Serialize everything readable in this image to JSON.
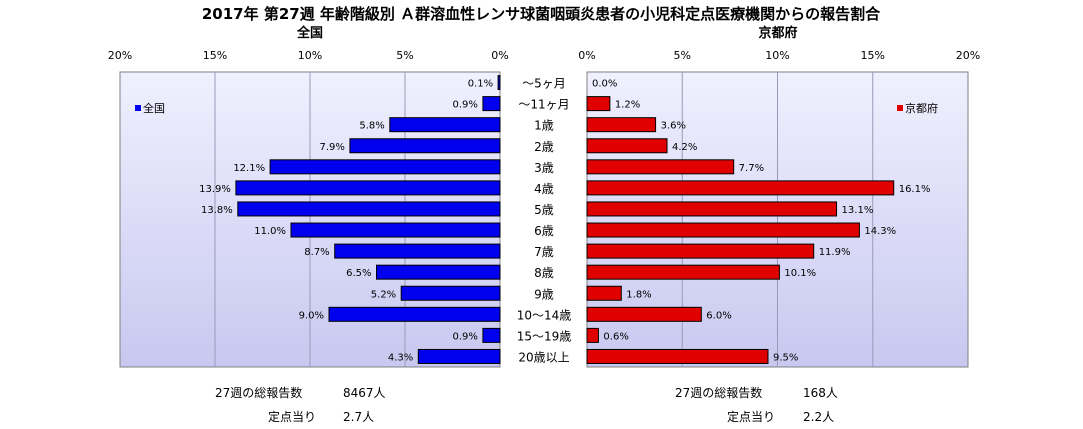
{
  "chart_data": {
    "type": "bar",
    "title": "2017年 第27週 年齢階級別 Ａ群溶血性レンサ球菌咽頭炎患者の小児科定点医療機関からの報告割合",
    "categories": [
      "～5ヶ月",
      "～11ヶ月",
      "1歳",
      "2歳",
      "3歳",
      "4歳",
      "5歳",
      "6歳",
      "7歳",
      "8歳",
      "9歳",
      "10～14歳",
      "15～19歳",
      "20歳以上"
    ],
    "xlim": [
      0,
      20
    ],
    "ticks": [
      "0%",
      "5%",
      "10%",
      "15%",
      "20%"
    ],
    "left_ticks": [
      "20%",
      "15%",
      "10%",
      "5%",
      "0%"
    ],
    "grid": "vertical",
    "legend_placement": "inside-top",
    "series": [
      {
        "name": "全国",
        "panel_title": "全国",
        "legend": "全国",
        "color": "#0000ee",
        "values": [
          0.1,
          0.9,
          5.8,
          7.9,
          12.1,
          13.9,
          13.8,
          11.0,
          8.7,
          6.5,
          5.2,
          9.0,
          0.9,
          4.3
        ],
        "labels": [
          "0.1%",
          "0.9%",
          "5.8%",
          "7.9%",
          "12.1%",
          "13.9%",
          "13.8%",
          "11.0%",
          "8.7%",
          "6.5%",
          "5.2%",
          "9.0%",
          "0.9%",
          "4.3%"
        ]
      },
      {
        "name": "京都府",
        "panel_title": "京都府",
        "legend": "京都府",
        "color": "#e00000",
        "values": [
          0.0,
          1.2,
          3.6,
          4.2,
          7.7,
          16.1,
          13.1,
          14.3,
          11.9,
          10.1,
          1.8,
          6.0,
          0.6,
          9.5
        ],
        "labels": [
          "0.0%",
          "1.2%",
          "3.6%",
          "4.2%",
          "7.7%",
          "16.1%",
          "13.1%",
          "14.3%",
          "11.9%",
          "10.1%",
          "1.8%",
          "6.0%",
          "0.6%",
          "9.5%"
        ]
      }
    ],
    "colors": {
      "plot_bg_top": "#f0f0ff",
      "plot_bg_bottom": "#c8c8f0"
    }
  },
  "footer": {
    "national": {
      "total_label": "27週の総報告数",
      "total_value": "8467人",
      "per_label": "定点当り",
      "per_value": "2.7人"
    },
    "kyoto": {
      "total_label": "27週の総報告数",
      "total_value": "168人",
      "per_label": "定点当り",
      "per_value": "2.2人"
    }
  }
}
